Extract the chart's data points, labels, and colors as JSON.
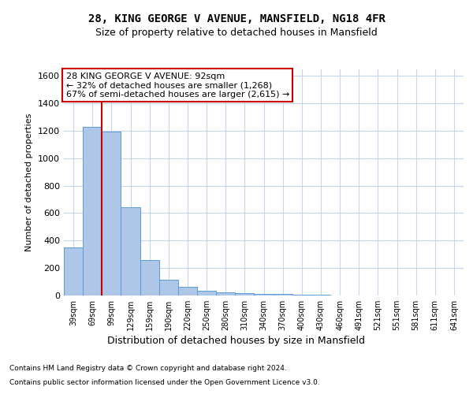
{
  "title1": "28, KING GEORGE V AVENUE, MANSFIELD, NG18 4FR",
  "title2": "Size of property relative to detached houses in Mansfield",
  "xlabel": "Distribution of detached houses by size in Mansfield",
  "ylabel": "Number of detached properties",
  "categories": [
    "39sqm",
    "69sqm",
    "99sqm",
    "129sqm",
    "159sqm",
    "190sqm",
    "220sqm",
    "250sqm",
    "280sqm",
    "310sqm",
    "340sqm",
    "370sqm",
    "400sqm",
    "430sqm",
    "460sqm",
    "491sqm",
    "521sqm",
    "551sqm",
    "581sqm",
    "611sqm",
    "641sqm"
  ],
  "values": [
    350,
    1230,
    1195,
    640,
    258,
    115,
    65,
    35,
    25,
    15,
    10,
    10,
    8,
    3,
    2,
    1,
    1,
    0,
    0,
    0,
    0
  ],
  "bar_color": "#aec6e8",
  "bar_edge_color": "#5b9bd5",
  "vline_color": "#cc0000",
  "vline_x_index": 1.5,
  "annotation_text": "28 KING GEORGE V AVENUE: 92sqm\n← 32% of detached houses are smaller (1,268)\n67% of semi-detached houses are larger (2,615) →",
  "annotation_box_color": "#ffffff",
  "annotation_box_edge": "#cc0000",
  "ylim": [
    0,
    1650
  ],
  "yticks": [
    0,
    200,
    400,
    600,
    800,
    1000,
    1200,
    1400,
    1600
  ],
  "footer1": "Contains HM Land Registry data © Crown copyright and database right 2024.",
  "footer2": "Contains public sector information licensed under the Open Government Licence v3.0.",
  "background_color": "#ffffff",
  "grid_color": "#c8d4e8",
  "title1_fontsize": 10,
  "title2_fontsize": 9,
  "ylabel_fontsize": 8,
  "xlabel_fontsize": 9,
  "tick_fontsize": 8,
  "xtick_fontsize": 7,
  "annotation_fontsize": 8
}
